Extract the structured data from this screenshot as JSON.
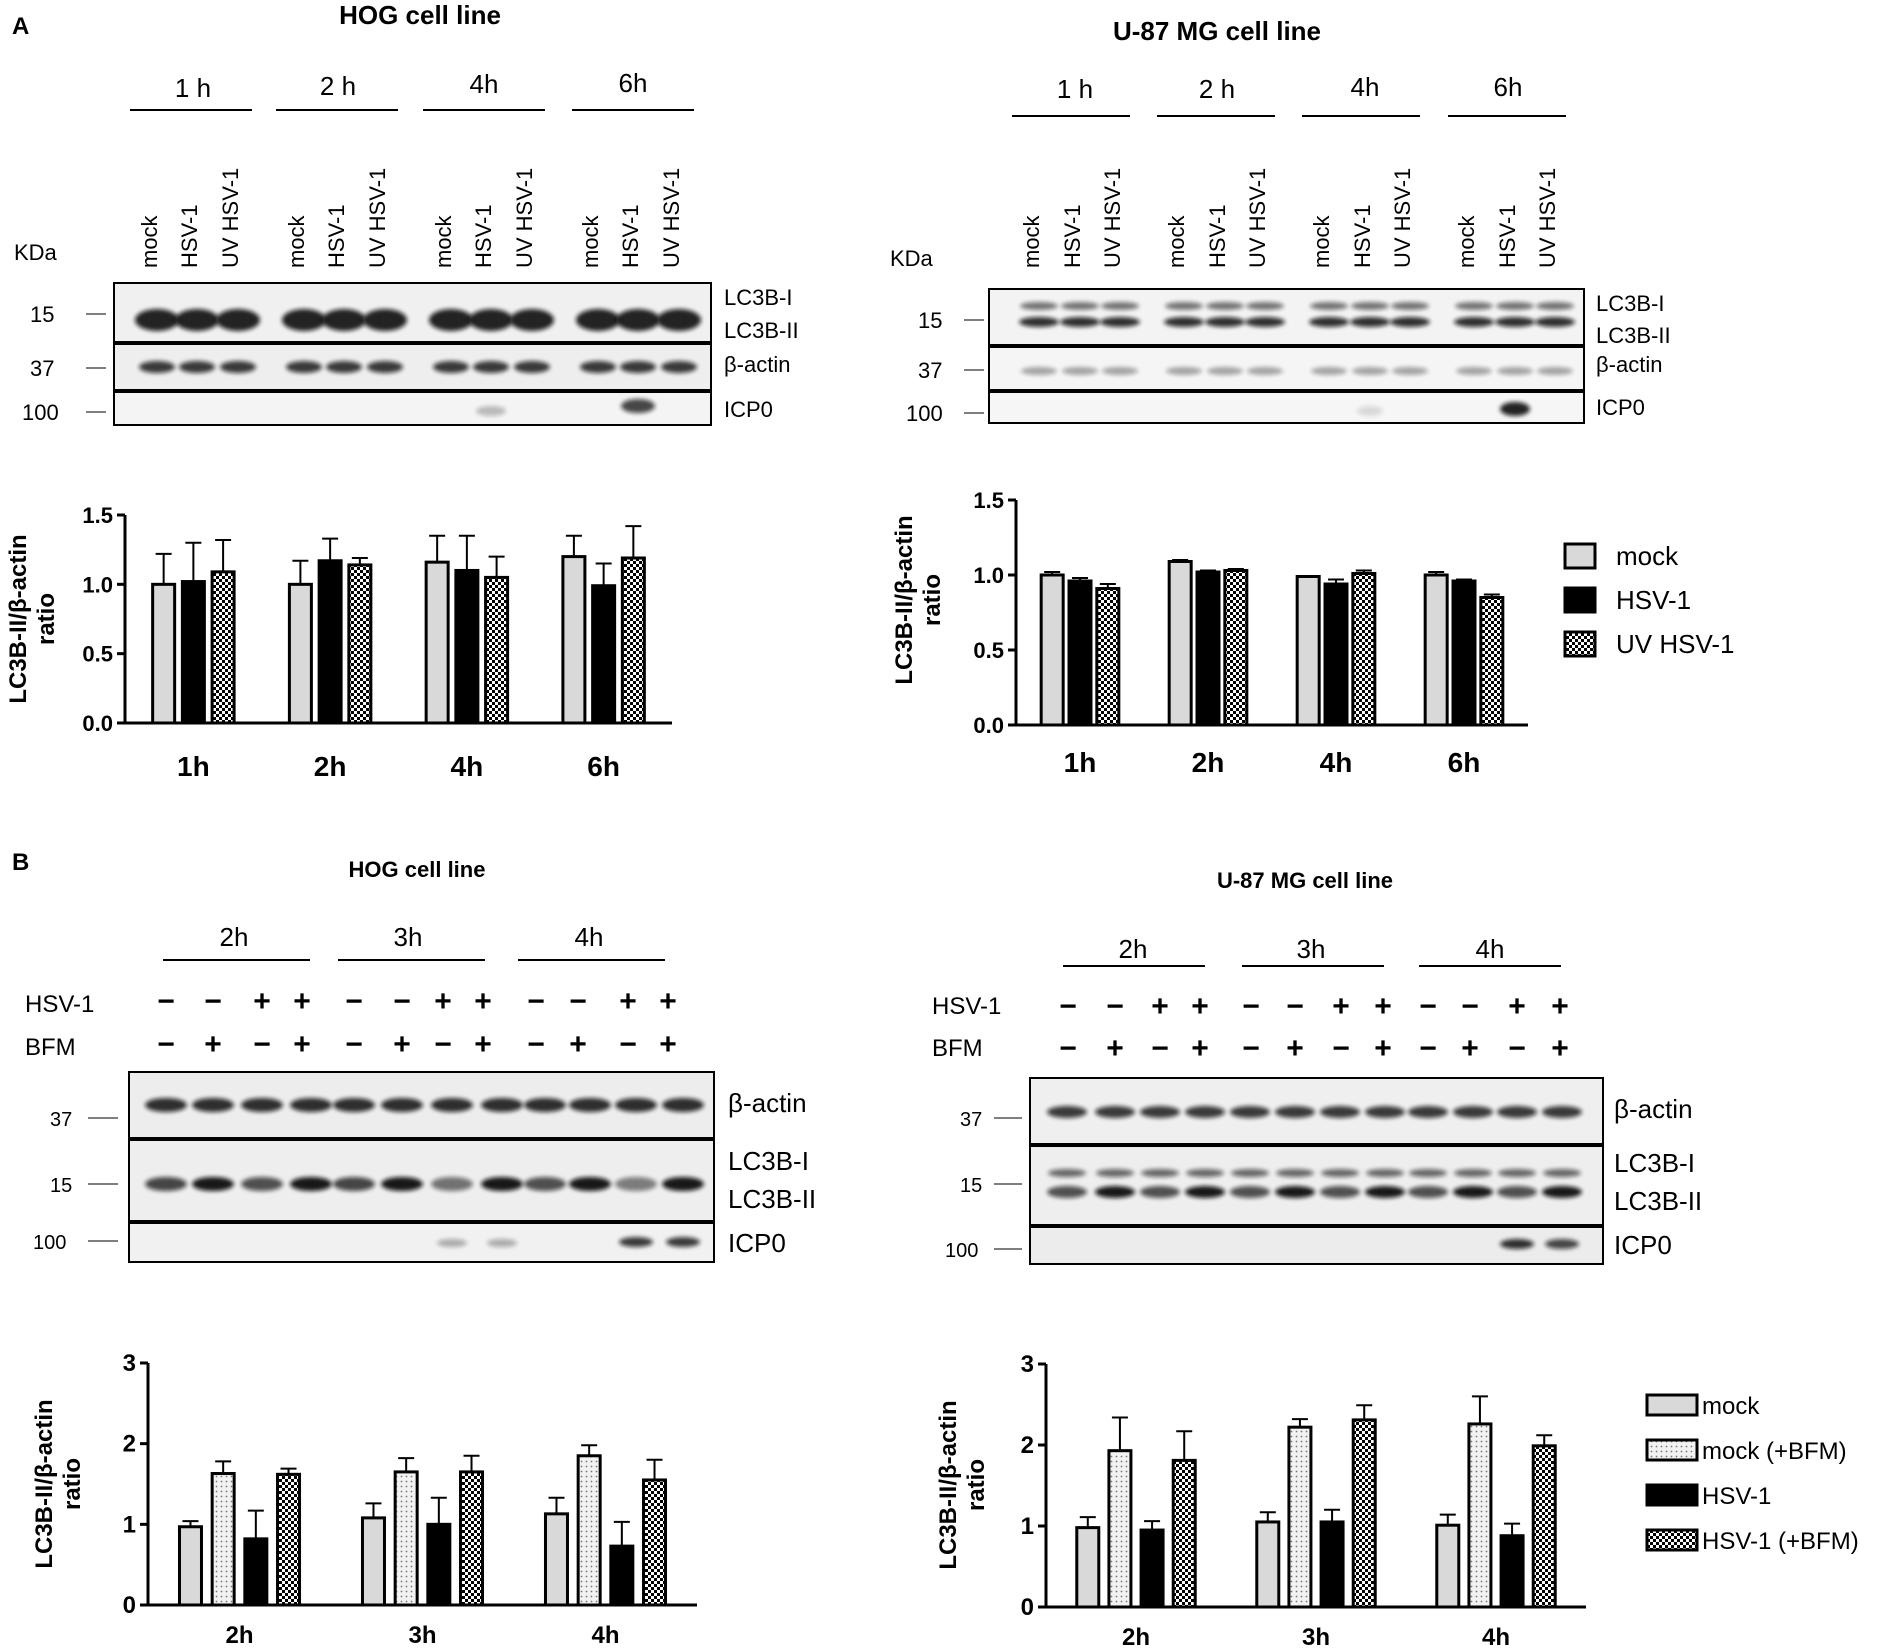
{
  "panelA": {
    "label": "A",
    "blots": [
      {
        "title": "HOG cell line",
        "kda": "KDa",
        "times": [
          "1 h",
          "2 h",
          "4h",
          "6h"
        ],
        "lanes": [
          "mock",
          "HSV-1",
          "UV HSV-1"
        ],
        "markers": [
          "15",
          "37",
          "100"
        ],
        "bands": [
          "LC3B-I",
          "LC3B-II",
          "β-actin",
          "ICP0"
        ]
      },
      {
        "title": "U-87 MG cell line",
        "kda": "KDa",
        "times": [
          "1 h",
          "2 h",
          "4h",
          "6h"
        ],
        "lanes": [
          "mock",
          "HSV-1",
          "UV HSV-1"
        ],
        "markers": [
          "15",
          "37",
          "100"
        ],
        "bands": [
          "LC3B-I",
          "LC3B-II",
          "β-actin",
          "ICP0"
        ]
      }
    ],
    "legend": [
      "mock",
      "HSV-1",
      "UV HSV-1"
    ]
  },
  "panelB": {
    "label": "B",
    "blots": [
      {
        "title": "HOG cell line",
        "times": [
          "2h",
          "3h",
          "4h"
        ],
        "row_labels": [
          "HSV-1",
          "BFM"
        ],
        "hsv_signs": [
          "−",
          "−",
          "+",
          "+",
          "−",
          "−",
          "+",
          "+",
          "−",
          "−",
          "+",
          "+"
        ],
        "bfm_signs": [
          "−",
          "+",
          "−",
          "+",
          "−",
          "+",
          "−",
          "+",
          "−",
          "+",
          "−",
          "+"
        ],
        "markers": [
          "37",
          "15",
          "100"
        ],
        "bands": [
          "β-actin",
          "LC3B-I",
          "LC3B-II",
          "ICP0"
        ]
      },
      {
        "title": "U-87 MG cell line",
        "times": [
          "2h",
          "3h",
          "4h"
        ],
        "row_labels": [
          "HSV-1",
          "BFM"
        ],
        "hsv_signs": [
          "−",
          "−",
          "+",
          "+",
          "−",
          "−",
          "+",
          "+",
          "−",
          "−",
          "+",
          "+"
        ],
        "bfm_signs": [
          "−",
          "+",
          "−",
          "+",
          "−",
          "+",
          "−",
          "+",
          "−",
          "+",
          "−",
          "+"
        ],
        "markers": [
          "37",
          "15",
          "100"
        ],
        "bands": [
          "β-actin",
          "LC3B-I",
          "LC3B-II",
          "ICP0"
        ]
      }
    ],
    "legend": [
      "mock",
      "mock (+BFM)",
      "HSV-1",
      "HSV-1 (+BFM)"
    ]
  },
  "colors": {
    "mock": "#d9d9d9",
    "hsv": "#000000",
    "uv": "checker",
    "mock_bfm": "dotted-light",
    "hsv_bfm": "checker"
  },
  "chart_data": [
    {
      "type": "bar",
      "title": "HOG cell line",
      "categories": [
        "1h",
        "2h",
        "4h",
        "6h"
      ],
      "ylabel": "LC3B-II/β-actin ratio",
      "ylim": [
        0,
        1.5
      ],
      "yticks": [
        "0.0",
        "0.5",
        "1.0",
        "1.5"
      ],
      "series": [
        {
          "name": "mock",
          "values": [
            1.0,
            1.0,
            1.16,
            1.2
          ],
          "err": [
            0.22,
            0.17,
            0.19,
            0.15
          ]
        },
        {
          "name": "HSV-1",
          "values": [
            1.02,
            1.17,
            1.1,
            0.99
          ],
          "err": [
            0.28,
            0.16,
            0.25,
            0.16
          ]
        },
        {
          "name": "UV HSV-1",
          "values": [
            1.09,
            1.14,
            1.05,
            1.19
          ],
          "err": [
            0.23,
            0.05,
            0.15,
            0.23
          ]
        }
      ]
    },
    {
      "type": "bar",
      "title": "U-87 MG cell line",
      "categories": [
        "1h",
        "2h",
        "4h",
        "6h"
      ],
      "ylabel": "LC3B-II/β-actin ratio",
      "ylim": [
        0,
        1.5
      ],
      "yticks": [
        "0.0",
        "0.5",
        "1.0",
        "1.5"
      ],
      "series": [
        {
          "name": "mock",
          "values": [
            1.0,
            1.09,
            0.99,
            1.0
          ],
          "err": [
            0.02,
            0.01,
            0.0,
            0.02
          ]
        },
        {
          "name": "HSV-1",
          "values": [
            0.96,
            1.02,
            0.94,
            0.96
          ],
          "err": [
            0.02,
            0.01,
            0.03,
            0.01
          ]
        },
        {
          "name": "UV HSV-1",
          "values": [
            0.91,
            1.03,
            1.01,
            0.85
          ],
          "err": [
            0.03,
            0.01,
            0.02,
            0.02
          ]
        }
      ]
    },
    {
      "type": "bar",
      "title": "HOG cell line",
      "categories": [
        "2h",
        "3h",
        "4h"
      ],
      "ylabel": "LC3B-II/β-actin ratio",
      "ylim": [
        0,
        3
      ],
      "yticks": [
        "0",
        "1",
        "2",
        "3"
      ],
      "series": [
        {
          "name": "mock",
          "values": [
            0.97,
            1.08,
            1.13
          ],
          "err": [
            0.07,
            0.18,
            0.2
          ]
        },
        {
          "name": "mock (+BFM)",
          "values": [
            1.63,
            1.65,
            1.85
          ],
          "err": [
            0.15,
            0.17,
            0.13
          ]
        },
        {
          "name": "HSV-1",
          "values": [
            0.82,
            1.0,
            0.73
          ],
          "err": [
            0.35,
            0.33,
            0.3
          ]
        },
        {
          "name": "HSV-1 (+BFM)",
          "values": [
            1.62,
            1.65,
            1.55
          ],
          "err": [
            0.07,
            0.2,
            0.25
          ]
        }
      ]
    },
    {
      "type": "bar",
      "title": "U-87 MG cell line",
      "categories": [
        "2h",
        "3h",
        "4h"
      ],
      "ylabel": "LC3B-II/β-actin ratio",
      "ylim": [
        0,
        3
      ],
      "yticks": [
        "0",
        "1",
        "2",
        "3"
      ],
      "series": [
        {
          "name": "mock",
          "values": [
            0.98,
            1.05,
            1.01
          ],
          "err": [
            0.13,
            0.12,
            0.13
          ]
        },
        {
          "name": "mock (+BFM)",
          "values": [
            1.93,
            2.22,
            2.26
          ],
          "err": [
            0.41,
            0.1,
            0.34
          ]
        },
        {
          "name": "HSV-1",
          "values": [
            0.95,
            1.05,
            0.88
          ],
          "err": [
            0.11,
            0.15,
            0.15
          ]
        },
        {
          "name": "HSV-1 (+BFM)",
          "values": [
            1.81,
            2.31,
            1.99
          ],
          "err": [
            0.36,
            0.18,
            0.13
          ]
        }
      ]
    }
  ]
}
